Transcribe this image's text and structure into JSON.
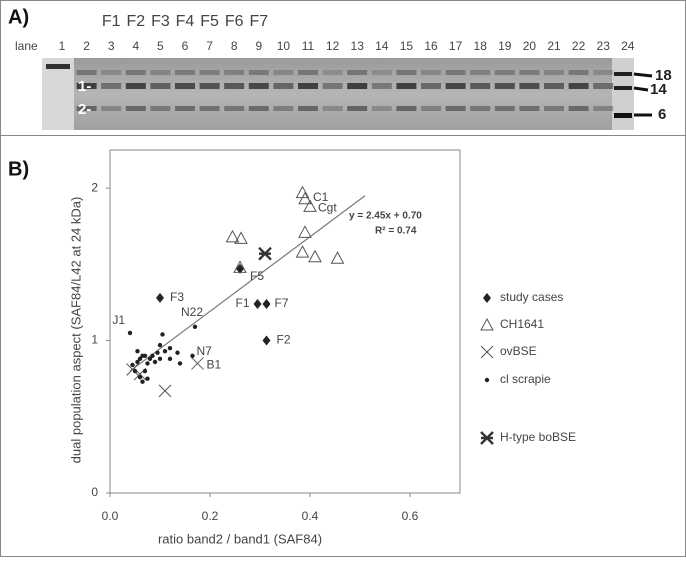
{
  "panel_a": {
    "label": "A)",
    "lane_title": "lane",
    "lanes": [
      "1",
      "2",
      "3",
      "4",
      "5",
      "6",
      "7",
      "8",
      "9",
      "10",
      "11",
      "12",
      "13",
      "14",
      "15",
      "16",
      "17",
      "18",
      "19",
      "20",
      "21",
      "22",
      "23",
      "24"
    ],
    "fractions": [
      "F1",
      "F2",
      "F3",
      "F4",
      "F5",
      "F6",
      "F7"
    ],
    "band_labels": [
      "1-",
      "2-"
    ],
    "marker_sizes": [
      "18",
      "14",
      "6"
    ]
  },
  "chart_data": {
    "type": "scatter",
    "panel_label": "B)",
    "x_label": "ratio band2 / band1 (SAF84)",
    "y_label": "dual population aspect (SAF84/L42 at 24 kDa)",
    "xlim": [
      0,
      0.7
    ],
    "ylim": [
      0,
      2.25
    ],
    "xticks": [
      {
        "value": 0,
        "label": "0.0"
      },
      {
        "value": 0.2,
        "label": "0.2"
      },
      {
        "value": 0.4,
        "label": "0.4"
      },
      {
        "value": 0.6,
        "label": "0.6"
      }
    ],
    "yticks": [
      0,
      1,
      2
    ],
    "series": [
      {
        "name": "study cases",
        "marker": "diamond",
        "color": "#222222",
        "x": [
          0.1,
          0.26,
          0.295,
          0.313,
          0.313
        ],
        "y": [
          1.28,
          1.47,
          1.24,
          1.24,
          1.0
        ],
        "labels": [
          "F3",
          "F5",
          "F1",
          "F7",
          "F2"
        ]
      },
      {
        "name": "CH1641",
        "marker": "triangle",
        "color": "#555555",
        "x": [
          0.385,
          0.39,
          0.4,
          0.245,
          0.262,
          0.26,
          0.39,
          0.385,
          0.41,
          0.455
        ],
        "y": [
          1.97,
          1.93,
          1.88,
          1.68,
          1.67,
          1.48,
          1.71,
          1.58,
          1.55,
          1.54
        ],
        "labels": [
          null,
          "C1",
          "Cgt",
          null,
          null,
          null,
          null,
          null,
          null,
          null
        ]
      },
      {
        "name": "ovBSE",
        "marker": "cross",
        "color": "#555555",
        "x": [
          0.045,
          0.06,
          0.11,
          0.175
        ],
        "y": [
          0.81,
          0.78,
          0.67,
          0.85
        ],
        "labels": [
          null,
          null,
          null,
          "B1"
        ]
      },
      {
        "name": "cl scrapie",
        "marker": "dot",
        "color": "#222222",
        "x": [
          0.04,
          0.045,
          0.05,
          0.055,
          0.06,
          0.065,
          0.07,
          0.075,
          0.08,
          0.085,
          0.09,
          0.095,
          0.1,
          0.1,
          0.105,
          0.11,
          0.12,
          0.12,
          0.135,
          0.14,
          0.06,
          0.065,
          0.07,
          0.055,
          0.17,
          0.165,
          0.075
        ],
        "y": [
          1.05,
          0.84,
          0.8,
          0.86,
          0.88,
          0.9,
          0.9,
          0.85,
          0.88,
          0.9,
          0.86,
          0.92,
          0.88,
          0.97,
          1.04,
          0.93,
          0.95,
          0.88,
          0.92,
          0.85,
          0.76,
          0.73,
          0.8,
          0.93,
          1.09,
          0.9,
          0.75
        ],
        "labels": [
          "J1",
          null,
          null,
          null,
          null,
          null,
          null,
          null,
          null,
          null,
          null,
          null,
          null,
          null,
          null,
          null,
          null,
          null,
          null,
          null,
          null,
          null,
          null,
          null,
          "N22",
          "N7",
          null
        ]
      },
      {
        "name": "H-type boBSE",
        "marker": "asterisk",
        "color": "#333333",
        "x": [
          0.31
        ],
        "y": [
          1.57
        ],
        "labels": [
          null
        ]
      }
    ],
    "trendline": {
      "x": [
        0.04,
        0.51
      ],
      "y": [
        0.8,
        1.95
      ],
      "color": "#777777",
      "equation": "y = 2.45x + 0.70",
      "r_squared": "R² = 0.74"
    }
  }
}
